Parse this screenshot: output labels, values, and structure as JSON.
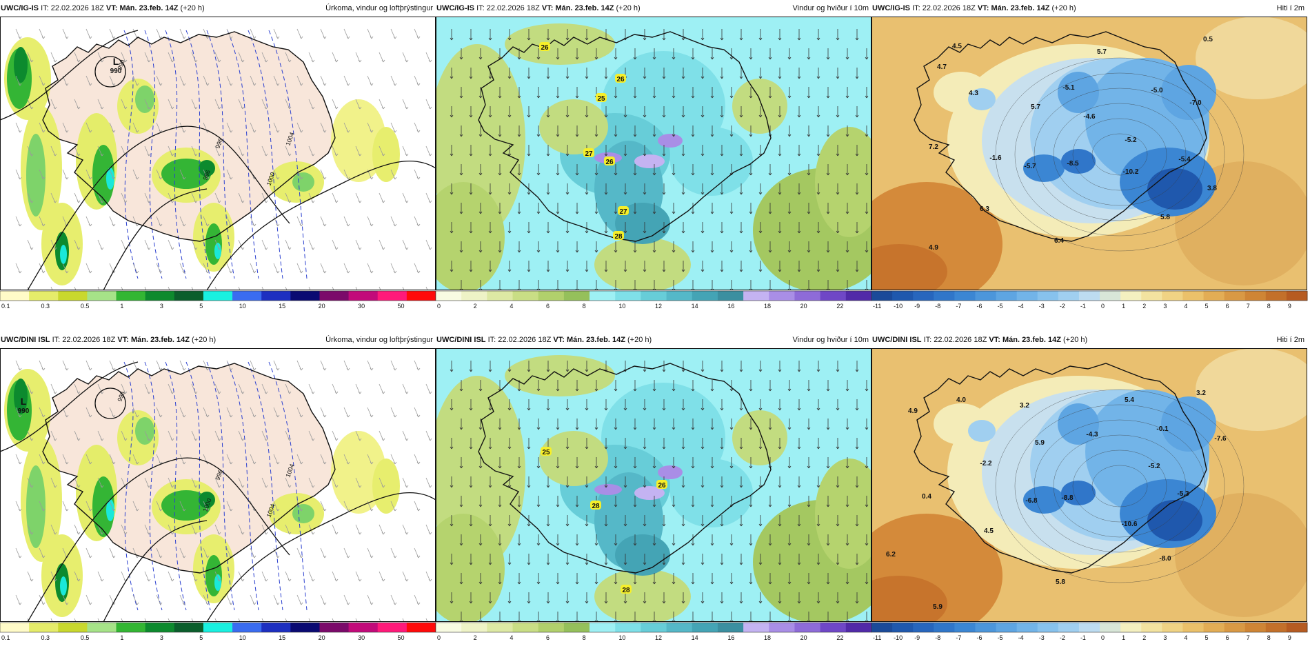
{
  "rows": [
    {
      "panels": [
        {
          "type": "precip",
          "model": "UWC/IG-IS",
          "it_label": "IT:",
          "it": "22.02.2026 18Z",
          "vt_label": "VT:",
          "vt": "Mán. 23.feb. 14Z",
          "lead": "(+20 h)",
          "title": "Úrkoma, vindur og loftþrýstingur",
          "pressure_labels": [
            "990",
            "996",
            "996",
            "1000",
            "1004"
          ],
          "low_symbol": "L",
          "low_value": "990"
        },
        {
          "type": "wind",
          "model": "UWC/IG-IS",
          "it_label": "IT:",
          "it": "22.02.2026 18Z",
          "vt_label": "VT:",
          "vt": "Mán. 23.feb. 14Z",
          "lead": "(+20 h)",
          "title": "Vindur og hviður í 10m",
          "gust_labels": [
            "26",
            "26",
            "25",
            "27",
            "26",
            "27",
            "28"
          ]
        },
        {
          "type": "temp",
          "model": "UWC/IG-IS",
          "it_label": "IT:",
          "it": "22.02.2026 18Z",
          "vt_label": "VT:",
          "vt": "Mán. 23.feb. 14Z",
          "lead": "(+20 h)",
          "title": "Hiti í 2m",
          "temp_labels": [
            "4.5",
            "5.7",
            "0.5",
            "4.7",
            "4.3",
            "-5.1",
            "-5.0",
            "5.7",
            "-4.6",
            "-7.0",
            "-5.2",
            "7.2",
            "-1.6",
            "-5.7",
            "-8.5",
            "-5.4",
            "-10.2",
            "3.8",
            "6.3",
            "5.8",
            "4.9",
            "6.4"
          ]
        }
      ]
    },
    {
      "panels": [
        {
          "type": "precip",
          "model": "UWC/DINI ISL",
          "it_label": "IT:",
          "it": "22.02.2026 18Z",
          "vt_label": "VT:",
          "vt": "Mán. 23.feb. 14Z",
          "lead": "(+20 h)",
          "title": "Úrkoma, vindur og loftþrýstingur",
          "pressure_labels": [
            "996",
            "996",
            "1000",
            "1004",
            "1004"
          ],
          "low_symbol": "L",
          "low_value": "990"
        },
        {
          "type": "wind",
          "model": "UWC/DINI ISL",
          "it_label": "IT:",
          "it": "22.02.2026 18Z",
          "vt_label": "VT:",
          "vt": "Mán. 23.feb. 14Z",
          "lead": "(+20 h)",
          "title": "Vindur og hviður í 10m",
          "gust_labels": [
            "25",
            "26",
            "28",
            "28"
          ]
        },
        {
          "type": "temp",
          "model": "UWC/DINI ISL",
          "it_label": "IT:",
          "it": "22.02.2026 18Z",
          "vt_label": "VT:",
          "vt": "Mán. 23.feb. 14Z",
          "lead": "(+20 h)",
          "title": "Hiti í 2m",
          "temp_labels": [
            "4.9",
            "4.0",
            "3.2",
            "5.4",
            "3.2",
            "-4.3",
            "-0.1",
            "5.9",
            "-7.6",
            "-2.2",
            "-5.2",
            "0.4",
            "-6.8",
            "-8.8",
            "-5.3",
            "4.5",
            "-10.6",
            "6.2",
            "-8.0",
            "5.8",
            "5.9"
          ]
        }
      ]
    }
  ],
  "legends": {
    "precip": {
      "unit_hint": "mm",
      "ticks": [
        "0.1",
        "0.3",
        "0.5",
        "1",
        "3",
        "5",
        "10",
        "15",
        "20",
        "30",
        "50"
      ],
      "colors": [
        "#fffbc8",
        "#e5ec6a",
        "#c9d82e",
        "#a6e388",
        "#33b633",
        "#0d8a2e",
        "#0b5e2c",
        "#19f0e0",
        "#3a6cf0",
        "#1d2fc0",
        "#0a0a72",
        "#7b0a6a",
        "#c20a7a",
        "#ff1a7a",
        "#ff0a0a"
      ]
    },
    "wind": {
      "ticks": [
        "0",
        "2",
        "4",
        "6",
        "8",
        "10",
        "12",
        "14",
        "16",
        "18",
        "20",
        "22"
      ],
      "colors": [
        "#f8fbe2",
        "#eef3c6",
        "#dde9a4",
        "#c9de85",
        "#b1d06c",
        "#95c05b",
        "#9ef0f4",
        "#7fe0e8",
        "#67cdd8",
        "#55b8c8",
        "#44a4b5",
        "#3b8fa0",
        "#c4b3f2",
        "#a98ee6",
        "#8e6bd8",
        "#6f47c6",
        "#512aa8"
      ]
    },
    "temp": {
      "ticks": [
        "-11",
        "-10",
        "-9",
        "-8",
        "-7",
        "-6",
        "-5",
        "-4",
        "-3",
        "-2",
        "-1",
        "0",
        "1",
        "2",
        "3",
        "4",
        "5",
        "6",
        "7",
        "8",
        "9"
      ],
      "colors": [
        "#1b4a99",
        "#1f58ad",
        "#2766bd",
        "#3076c9",
        "#3b86d3",
        "#4c96db",
        "#5ea5e2",
        "#72b4e8",
        "#87c2ed",
        "#a0cff0",
        "#bddcf1",
        "#d8e6d8",
        "#f4f0c0",
        "#f3e3a0",
        "#f0d384",
        "#ebc16a",
        "#e3ad55",
        "#d99944",
        "#cf8535",
        "#c3702a",
        "#b65b21"
      ]
    }
  }
}
